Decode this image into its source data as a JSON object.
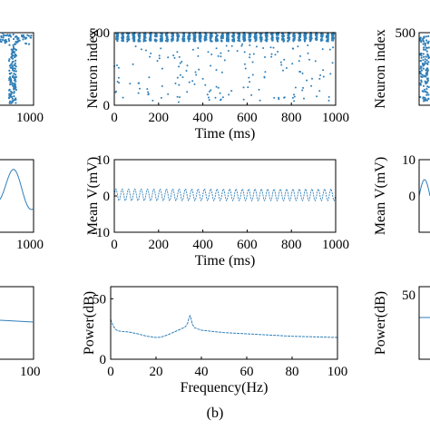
{
  "figure_label": "(b)",
  "colors": {
    "trace": "#2f7fb8",
    "axis": "#000000"
  },
  "chart_data": [
    {
      "id": "raster",
      "type": "scatter",
      "xlabel": "Time (ms)",
      "ylabel": "Neuron index",
      "xlim": [
        0,
        1000
      ],
      "ylim": [
        0,
        500
      ],
      "xticks": [
        "0",
        "200",
        "400",
        "600",
        "800",
        "1000"
      ],
      "yticks": [
        "0",
        "500"
      ],
      "synchronous_band": {
        "y_min": 440,
        "y_max": 500,
        "burst_count": 40
      },
      "sparse_spikes": {
        "y_min": 20,
        "y_max": 430,
        "count": 170
      }
    },
    {
      "id": "mean_voltage",
      "type": "line",
      "xlabel": "Time (ms)",
      "ylabel": "Mean V(mV)",
      "xlim": [
        0,
        1000
      ],
      "ylim": [
        -10,
        10
      ],
      "xticks": [
        "0",
        "200",
        "400",
        "600",
        "800",
        "1000"
      ],
      "yticks": [
        "-10",
        "0",
        "10"
      ],
      "oscillation": {
        "baseline": 0.3,
        "amplitude": 1.6,
        "frequency_hz": 35
      }
    },
    {
      "id": "power_spectrum",
      "type": "line",
      "xlabel": "Frequency(Hz)",
      "ylabel": "Power(dB)",
      "xlim": [
        0,
        100
      ],
      "ylim": [
        0,
        60
      ],
      "xticks": [
        "0",
        "20",
        "40",
        "60",
        "80",
        "100"
      ],
      "yticks": [
        "0",
        "50"
      ],
      "series": [
        {
          "x": [
            0,
            1,
            2,
            3,
            5,
            8,
            12,
            16,
            20,
            22,
            25,
            28,
            31,
            33,
            34,
            34.5,
            35,
            35.5,
            36,
            37,
            40,
            45,
            50,
            60,
            70,
            80,
            90,
            100
          ],
          "y": [
            33,
            28,
            25,
            23.5,
            23,
            22.5,
            21,
            19,
            18,
            18.2,
            20,
            22.5,
            25,
            27,
            30,
            34,
            36,
            33,
            29,
            26,
            24,
            23,
            22,
            21,
            20,
            19,
            18.5,
            18
          ]
        }
      ]
    }
  ],
  "side_panels": {
    "left": {
      "raster_xtick": "1000",
      "voltage_xtick": "1000",
      "power_xtick": "100"
    },
    "right": {
      "raster_ylabel": "Neuron index",
      "raster_ytick": "500",
      "voltage_ylabel": "Mean V(mV)",
      "voltage_yticks": [
        "10",
        "0"
      ],
      "power_ylabel": "Power(dB)",
      "power_ytick": "50"
    }
  }
}
